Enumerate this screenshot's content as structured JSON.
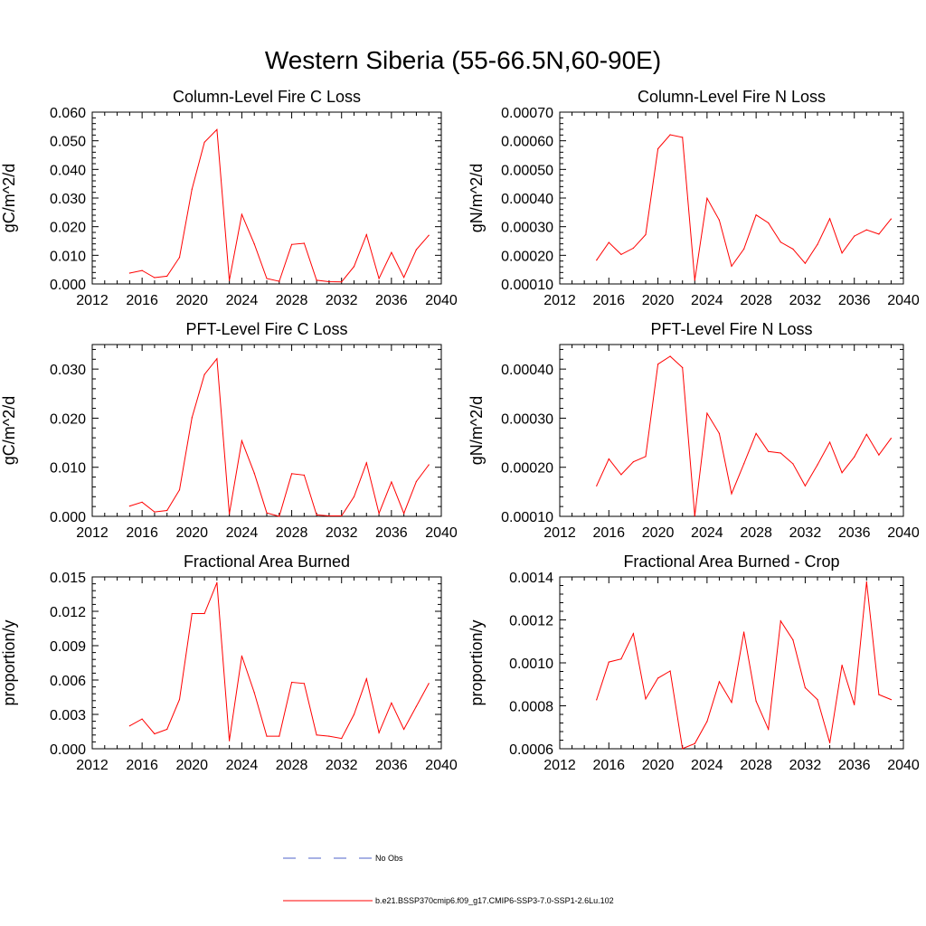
{
  "figure": {
    "title": "Western Siberia (55-66.5N,60-90E)"
  },
  "legend": {
    "entries": [
      {
        "label": "No Obs",
        "color": "#4f63c8",
        "style": "dashed"
      },
      {
        "label": "b.e21.BSSP370cmip6.f09_g17.CMIP6-SSP3-7.0-SSP1-2.6Lu.102",
        "color": "#ff0000",
        "style": "solid"
      }
    ]
  },
  "chart_data": [
    {
      "type": "line",
      "title": "Column-Level Fire C Loss",
      "ylabel": "gC/m^2/d",
      "xlim": [
        2012,
        2040
      ],
      "ylim": [
        0,
        0.06
      ],
      "xticks": [
        "2012",
        "2016",
        "2020",
        "2024",
        "2028",
        "2032",
        "2036",
        "2040"
      ],
      "yticks": [
        "0.000",
        "0.010",
        "0.020",
        "0.030",
        "0.040",
        "0.050",
        "0.060"
      ],
      "x": [
        2015,
        2016,
        2017,
        2018,
        2019,
        2020,
        2021,
        2022,
        2023,
        2024,
        2025,
        2026,
        2027,
        2028,
        2029,
        2030,
        2031,
        2032,
        2033,
        2034,
        2035,
        2036,
        2037,
        2038,
        2039
      ],
      "series": [
        {
          "color": "#ff0000",
          "values": [
            0.0038,
            0.0047,
            0.0022,
            0.0027,
            0.0093,
            0.0331,
            0.0495,
            0.0539,
            0.0012,
            0.0243,
            0.014,
            0.0019,
            0.0009,
            0.0138,
            0.0142,
            0.0013,
            0.0008,
            0.0007,
            0.0061,
            0.0172,
            0.0019,
            0.011,
            0.0023,
            0.012,
            0.017
          ]
        }
      ]
    },
    {
      "type": "line",
      "title": "Column-Level Fire N Loss",
      "ylabel": "gN/m^2/d",
      "xlim": [
        2012,
        2040
      ],
      "ylim": [
        0.0001,
        0.0007
      ],
      "xticks": [
        "2012",
        "2016",
        "2020",
        "2024",
        "2028",
        "2032",
        "2036",
        "2040"
      ],
      "yticks": [
        "0.00010",
        "0.00020",
        "0.00030",
        "0.00040",
        "0.00050",
        "0.00060",
        "0.00070"
      ],
      "x": [
        2015,
        2016,
        2017,
        2018,
        2019,
        2020,
        2021,
        2022,
        2023,
        2024,
        2025,
        2026,
        2027,
        2028,
        2029,
        2030,
        2031,
        2032,
        2033,
        2034,
        2035,
        2036,
        2037,
        2038,
        2039
      ],
      "series": [
        {
          "color": "#ff0000",
          "values": [
            0.000183,
            0.000245,
            0.000203,
            0.000225,
            0.000272,
            0.000572,
            0.000621,
            0.000612,
            0.000113,
            0.000399,
            0.000323,
            0.000162,
            0.000222,
            0.000341,
            0.000313,
            0.000246,
            0.000222,
            0.000172,
            0.000238,
            0.000328,
            0.000208,
            0.000267,
            0.000289,
            0.000274,
            0.000327
          ]
        }
      ]
    },
    {
      "type": "line",
      "title": "PFT-Level Fire C Loss",
      "ylabel": "gC/m^2/d",
      "xlim": [
        2012,
        2040
      ],
      "ylim": [
        0,
        0.035
      ],
      "xticks": [
        "2012",
        "2016",
        "2020",
        "2024",
        "2028",
        "2032",
        "2036",
        "2040"
      ],
      "yticks": [
        "0.000",
        "0.010",
        "0.020",
        "0.030"
      ],
      "x": [
        2015,
        2016,
        2017,
        2018,
        2019,
        2020,
        2021,
        2022,
        2023,
        2024,
        2025,
        2026,
        2027,
        2028,
        2029,
        2030,
        2031,
        2032,
        2033,
        2034,
        2035,
        2036,
        2037,
        2038,
        2039
      ],
      "series": [
        {
          "color": "#ff0000",
          "values": [
            0.0021,
            0.0029,
            0.0009,
            0.0012,
            0.0054,
            0.0201,
            0.0289,
            0.0321,
            0.0005,
            0.0154,
            0.0088,
            0.0007,
            0.0,
            0.0087,
            0.0084,
            0.0003,
            0.0001,
            0.0001,
            0.004,
            0.0109,
            0.0006,
            0.007,
            0.0006,
            0.0071,
            0.0105
          ]
        }
      ]
    },
    {
      "type": "line",
      "title": "PFT-Level Fire N Loss",
      "ylabel": "gN/m^2/d",
      "xlim": [
        2012,
        2040
      ],
      "ylim": [
        0.0001,
        0.00045
      ],
      "xticks": [
        "2012",
        "2016",
        "2020",
        "2024",
        "2028",
        "2032",
        "2036",
        "2040"
      ],
      "yticks": [
        "0.00010",
        "0.00020",
        "0.00030",
        "0.00040"
      ],
      "x": [
        2015,
        2016,
        2017,
        2018,
        2019,
        2020,
        2021,
        2022,
        2023,
        2024,
        2025,
        2026,
        2027,
        2028,
        2029,
        2030,
        2031,
        2032,
        2033,
        2034,
        2035,
        2036,
        2037,
        2038,
        2039
      ],
      "series": [
        {
          "color": "#ff0000",
          "values": [
            0.000162,
            0.000217,
            0.000185,
            0.000211,
            0.000222,
            0.00041,
            0.000426,
            0.000403,
            0.000101,
            0.00031,
            0.000269,
            0.000146,
            0.000207,
            0.000269,
            0.000232,
            0.000229,
            0.000207,
            0.000162,
            0.000205,
            0.000251,
            0.000189,
            0.000221,
            0.000267,
            0.000225,
            0.000259
          ]
        }
      ]
    },
    {
      "type": "line",
      "title": "Fractional Area Burned",
      "ylabel": "proportion/y",
      "xlim": [
        2012,
        2040
      ],
      "ylim": [
        0,
        0.015
      ],
      "xticks": [
        "2012",
        "2016",
        "2020",
        "2024",
        "2028",
        "2032",
        "2036",
        "2040"
      ],
      "yticks": [
        "0.000",
        "0.003",
        "0.006",
        "0.009",
        "0.012",
        "0.015"
      ],
      "x": [
        2015,
        2016,
        2017,
        2018,
        2019,
        2020,
        2021,
        2022,
        2023,
        2024,
        2025,
        2026,
        2027,
        2028,
        2029,
        2030,
        2031,
        2032,
        2033,
        2034,
        2035,
        2036,
        2037,
        2038,
        2039
      ],
      "series": [
        {
          "color": "#ff0000",
          "values": [
            0.002,
            0.0026,
            0.0013,
            0.0017,
            0.0043,
            0.0118,
            0.0118,
            0.0145,
            0.0007,
            0.0081,
            0.0049,
            0.0011,
            0.0011,
            0.0058,
            0.0057,
            0.0012,
            0.0011,
            0.0009,
            0.003,
            0.0061,
            0.0014,
            0.004,
            0.0017,
            0.0037,
            0.0057
          ]
        }
      ]
    },
    {
      "type": "line",
      "title": "Fractional Area Burned - Crop",
      "ylabel": "proportion/y",
      "xlim": [
        2012,
        2040
      ],
      "ylim": [
        0.0006,
        0.0014
      ],
      "xticks": [
        "2012",
        "2016",
        "2020",
        "2024",
        "2028",
        "2032",
        "2036",
        "2040"
      ],
      "yticks": [
        "0.0006",
        "0.0008",
        "0.0010",
        "0.0012",
        "0.0014"
      ],
      "x": [
        2015,
        2016,
        2017,
        2018,
        2019,
        2020,
        2021,
        2022,
        2023,
        2024,
        2025,
        2026,
        2027,
        2028,
        2029,
        2030,
        2031,
        2032,
        2033,
        2034,
        2035,
        2036,
        2037,
        2038,
        2039
      ],
      "series": [
        {
          "color": "#ff0000",
          "values": [
            0.000828,
            0.001004,
            0.001018,
            0.001136,
            0.000832,
            0.000929,
            0.000962,
            0.000601,
            0.000624,
            0.000727,
            0.000912,
            0.000816,
            0.001143,
            0.000822,
            0.000691,
            0.001195,
            0.001107,
            0.000884,
            0.000829,
            0.000628,
            0.000989,
            0.000805,
            0.001377,
            0.000852,
            0.000829
          ]
        }
      ]
    }
  ]
}
